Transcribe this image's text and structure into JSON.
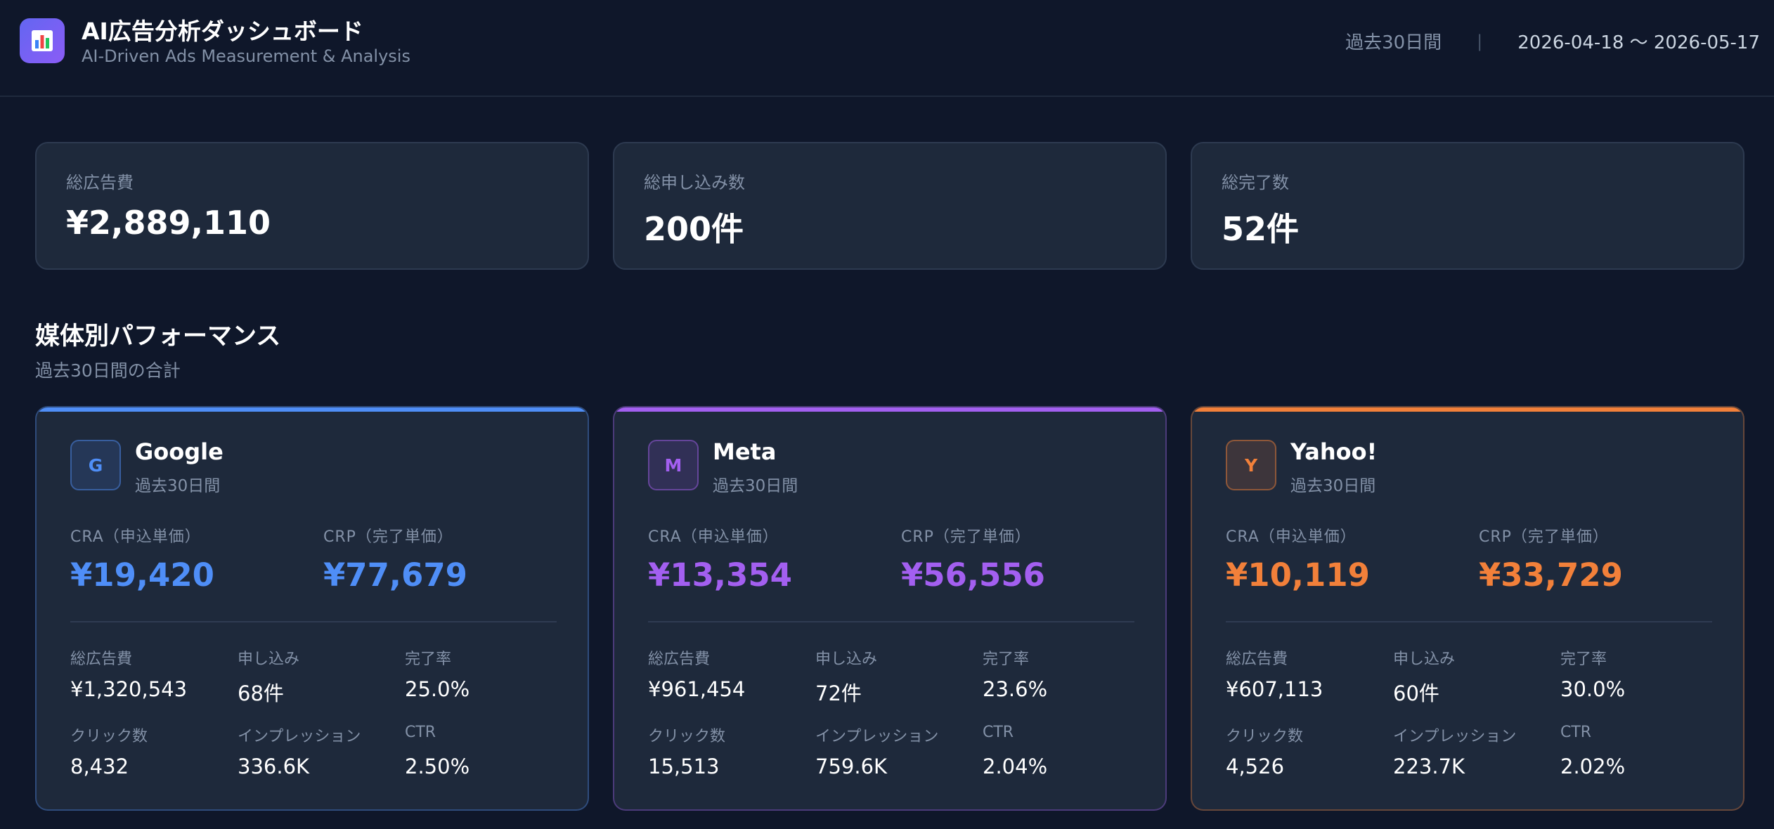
{
  "header": {
    "logo_icon": "bar-chart-icon",
    "title": "AI広告分析ダッシュボード",
    "subtitle": "AI-Driven Ads Measurement & Analysis",
    "period_label": "過去30日間",
    "separator": "|",
    "date_range": "2026-04-18 〜 2026-05-17"
  },
  "summary": [
    {
      "label": "総広告費",
      "value": "¥2,889,110"
    },
    {
      "label": "総申し込み数",
      "value": "200件"
    },
    {
      "label": "総完了数",
      "value": "52件"
    }
  ],
  "section": {
    "title": "媒体別パフォーマンス",
    "subtitle": "過去30日間の合計"
  },
  "media": [
    {
      "badge": "G",
      "name": "Google",
      "period": "過去30日間",
      "color": "#4f8ef7",
      "cra_label": "CRA（申込単価）",
      "cra_value": "¥19,420",
      "crp_label": "CRP（完了単価）",
      "crp_value": "¥77,679",
      "stats": [
        {
          "label": "総広告費",
          "value": "¥1,320,543"
        },
        {
          "label": "申し込み",
          "value": "68件"
        },
        {
          "label": "完了率",
          "value": "25.0%"
        },
        {
          "label": "クリック数",
          "value": "8,432"
        },
        {
          "label": "インプレッション",
          "value": "336.6K"
        },
        {
          "label": "CTR",
          "value": "2.50%"
        }
      ]
    },
    {
      "badge": "M",
      "name": "Meta",
      "period": "過去30日間",
      "color": "#a35ff0",
      "cra_label": "CRA（申込単価）",
      "cra_value": "¥13,354",
      "crp_label": "CRP（完了単価）",
      "crp_value": "¥56,556",
      "stats": [
        {
          "label": "総広告費",
          "value": "¥961,454"
        },
        {
          "label": "申し込み",
          "value": "72件"
        },
        {
          "label": "完了率",
          "value": "23.6%"
        },
        {
          "label": "クリック数",
          "value": "15,513"
        },
        {
          "label": "インプレッション",
          "value": "759.6K"
        },
        {
          "label": "CTR",
          "value": "2.04%"
        }
      ]
    },
    {
      "badge": "Y",
      "name": "Yahoo!",
      "period": "過去30日間",
      "color": "#f2803a",
      "cra_label": "CRA（申込単価）",
      "cra_value": "¥10,119",
      "crp_label": "CRP（完了単価）",
      "crp_value": "¥33,729",
      "stats": [
        {
          "label": "総広告費",
          "value": "¥607,113"
        },
        {
          "label": "申し込み",
          "value": "60件"
        },
        {
          "label": "完了率",
          "value": "30.0%"
        },
        {
          "label": "クリック数",
          "value": "4,526"
        },
        {
          "label": "インプレッション",
          "value": "223.7K"
        },
        {
          "label": "CTR",
          "value": "2.02%"
        }
      ]
    }
  ]
}
